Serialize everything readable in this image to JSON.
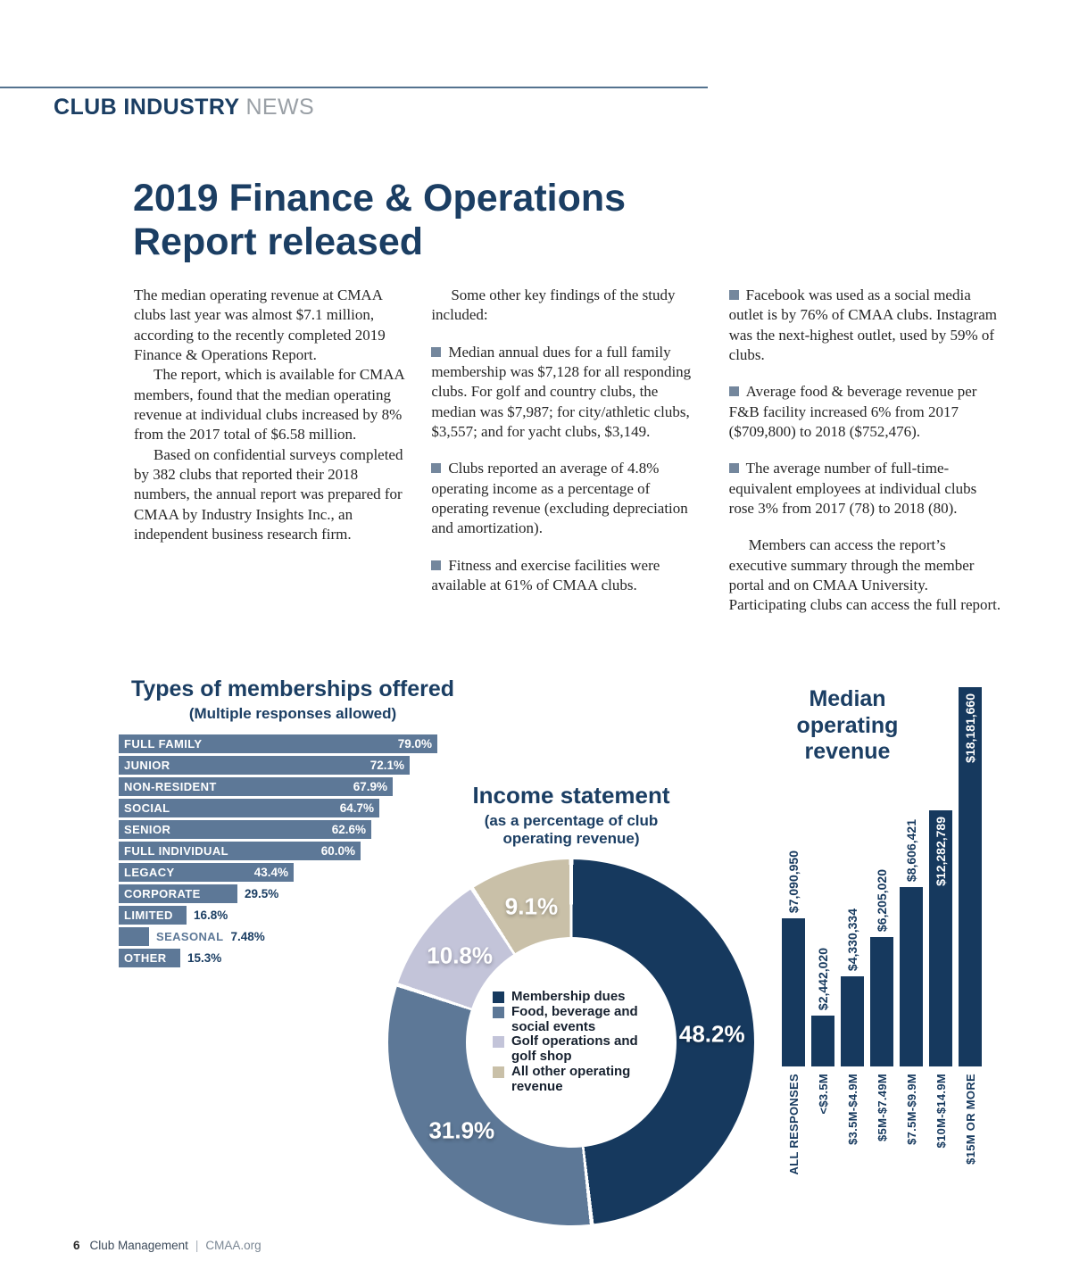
{
  "header": {
    "section": "CLUB INDUSTRY",
    "section_suffix": "NEWS"
  },
  "title": "2019 Finance & Operations Report released",
  "article": {
    "columns": [
      {
        "paragraphs": [
          {
            "text": "The median operating revenue at CMAA clubs last year was almost $7.1 million, according to the recently completed 2019 Finance & Operations Report."
          },
          {
            "text": "The report, which is available for CMAA members, found that the median operating revenue at individual clubs increased by 8% from the 2017 total of $6.58 million.",
            "indent": true
          },
          {
            "text": "Based on confidential surveys completed by 382 clubs that reported their 2018 numbers, the annual report was prepared for CMAA by Industry Insights Inc., an independent business research firm.",
            "indent": true
          }
        ]
      },
      {
        "paragraphs": [
          {
            "text": "Some other key findings of the study included:",
            "indent": true
          },
          {
            "text": "Median annual dues for a full family membership was $7,128 for all responding clubs. For golf and country clubs, the median was $7,987; for city/athletic clubs, $3,557; and for yacht clubs, $3,149.",
            "bullet": true,
            "space_before": true
          },
          {
            "text": "Clubs reported an average of 4.8% operating income as a percentage of operating revenue (excluding depreciation and amortization).",
            "bullet": true,
            "space_before": true
          },
          {
            "text": "Fitness and exercise facilities were available at 61% of CMAA clubs.",
            "bullet": true,
            "space_before": true
          }
        ]
      },
      {
        "paragraphs": [
          {
            "text": "Facebook was used as a social media outlet is by 76% of CMAA clubs. Instagram was the next-highest outlet, used by 59% of clubs.",
            "bullet": true
          },
          {
            "text": "Average food & beverage revenue per F&B facility increased 6% from 2017 ($709,800) to 2018 ($752,476).",
            "bullet": true,
            "space_before": true
          },
          {
            "text": "The average number of full-time-equivalent employees at individual clubs rose 3% from 2017 (78) to 2018 (80).",
            "bullet": true,
            "space_before": true
          },
          {
            "text": "Members can access the report’s executive summary through the member portal and on CMAA University. Participating clubs can access the full report.",
            "indent": true,
            "space_before": true
          }
        ]
      }
    ]
  },
  "chart_data": [
    {
      "type": "bar",
      "orientation": "horizontal",
      "title": "Types of memberships offered",
      "subtitle": "(Multiple responses allowed)",
      "categories": [
        "FULL FAMILY",
        "JUNIOR",
        "NON-RESIDENT",
        "SOCIAL",
        "SENIOR",
        "FULL INDIVIDUAL",
        "LEGACY",
        "CORPORATE",
        "LIMITED",
        "SEASONAL",
        "OTHER"
      ],
      "values": [
        79.0,
        72.1,
        67.9,
        64.7,
        62.6,
        60.0,
        43.4,
        29.5,
        16.8,
        7.48,
        15.3
      ],
      "value_labels": [
        "79.0%",
        "72.1%",
        "67.9%",
        "64.7%",
        "62.6%",
        "60.0%",
        "43.4%",
        "29.5%",
        "16.8%",
        "7.48%",
        "15.3%"
      ],
      "value_inside": [
        true,
        true,
        true,
        true,
        true,
        true,
        true,
        false,
        false,
        false,
        false
      ],
      "label_outside": [
        false,
        false,
        false,
        false,
        false,
        false,
        false,
        false,
        false,
        true,
        false
      ],
      "bar_color": "#5d7897",
      "xlim": [
        0,
        79
      ]
    },
    {
      "type": "pie",
      "donut": true,
      "title": "Income statement",
      "subtitle": "(as a percentage of club operating revenue)",
      "slices": [
        {
          "label": "Membership dues",
          "value": 48.2,
          "display": "48.2%",
          "color": "#16395e"
        },
        {
          "label": "Food, beverage and social events",
          "value": 31.9,
          "display": "31.9%",
          "color": "#5d7897"
        },
        {
          "label": "Golf operations and golf shop",
          "value": 10.8,
          "display": "10.8%",
          "color": "#c3c4d9"
        },
        {
          "label": "All other operating revenue",
          "value": 9.1,
          "display": "9.1%",
          "color": "#c9c0a8"
        }
      ],
      "start_angle_deg": 0,
      "direction": "clockwise",
      "legend_position": "center"
    },
    {
      "type": "bar",
      "orientation": "vertical",
      "title": "Median operating revenue",
      "categories": [
        "ALL RESPONSES",
        "<$3.5M",
        "$3.5M-$4.9M",
        "$5M-$7.49M",
        "$7.5M-$9.9M",
        "$10M-$14.9M",
        "$15M OR MORE"
      ],
      "values": [
        7090950,
        2442020,
        4330334,
        6205020,
        8606421,
        12282789,
        18181660
      ],
      "value_labels": [
        "$7,090,950",
        "$2,442,020",
        "$4,330,334",
        "$6,205,020",
        "$8,606,421",
        "$12,282,789",
        "$18,181,660"
      ],
      "value_inside": [
        false,
        false,
        false,
        false,
        false,
        true,
        true
      ],
      "bar_color": "#16395e"
    }
  ],
  "footer": {
    "page_number": "6",
    "magazine": "Club Management",
    "separator": "|",
    "site": "CMAA.org"
  },
  "colors": {
    "heading_navy": "#1b3e63",
    "bar_navy": "#16395e",
    "steel_blue": "#5d7897",
    "lavender": "#c3c4d9",
    "tan": "#c9c0a8",
    "bullet_square": "#74879d",
    "kicker_gray": "#9aa0a6"
  }
}
